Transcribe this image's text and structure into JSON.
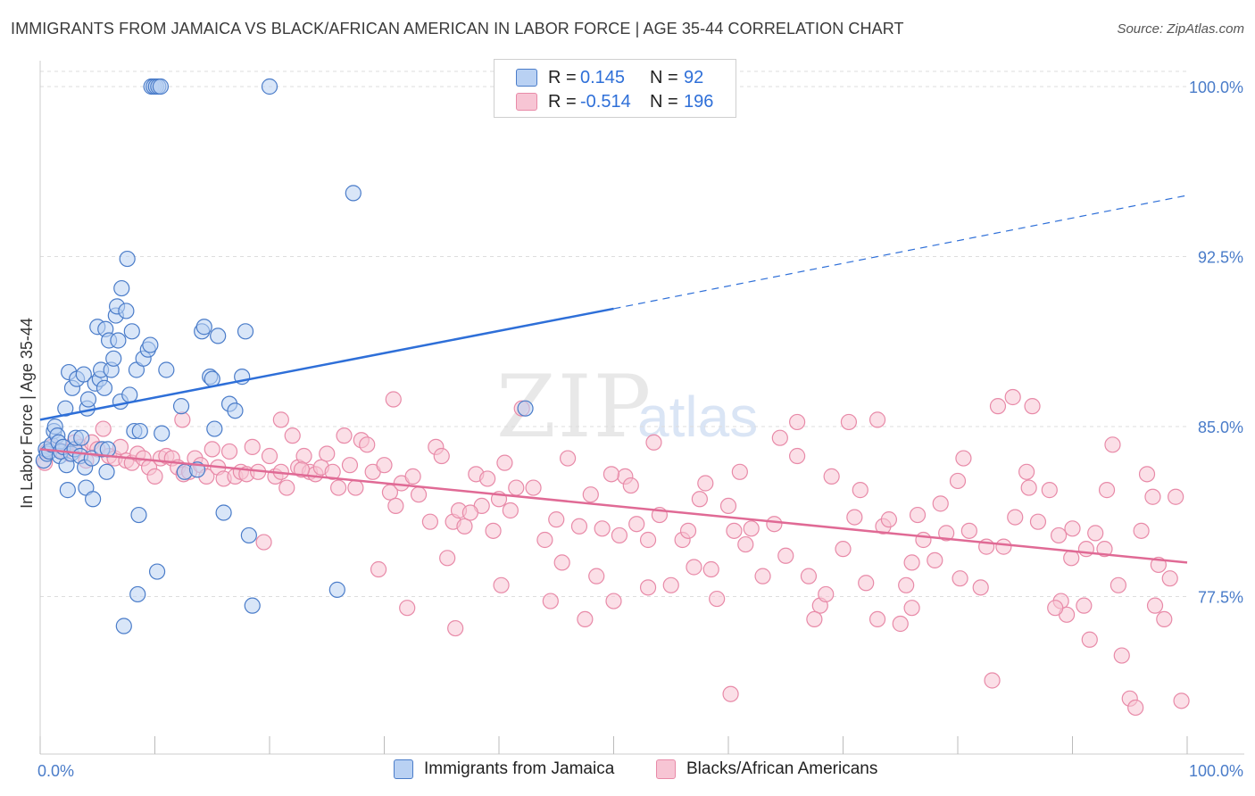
{
  "header": {
    "title": "IMMIGRANTS FROM JAMAICA VS BLACK/AFRICAN AMERICAN IN LABOR FORCE | AGE 35-44 CORRELATION CHART",
    "source": "Source: ZipAtlas.com"
  },
  "watermark": {
    "zip": "ZIP",
    "atlas": "atlas"
  },
  "legend": {
    "r_label": "R =",
    "n_label": "N =",
    "rows": [
      {
        "r": "0.145",
        "n": "92"
      },
      {
        "r": "-0.514",
        "n": "196"
      }
    ]
  },
  "colors": {
    "blue_fill": "#b9d1f3",
    "blue_stroke": "#4a7cc9",
    "blue_line": "#2e6fd8",
    "pink_fill": "#f7c5d4",
    "pink_stroke": "#e88aa8",
    "pink_line": "#e06a95",
    "tick_color": "#4a7cc9",
    "grid": "#dddddd"
  },
  "chart_data": {
    "type": "scatter",
    "title": "IMMIGRANTS FROM JAMAICA VS BLACK/AFRICAN AMERICAN IN LABOR FORCE | AGE 35-44 CORRELATION CHART",
    "ylabel": "In Labor Force | Age 35-44",
    "xlabel": "",
    "x_tick_labels": [
      "0.0%",
      "100.0%"
    ],
    "y_tick_labels": [
      "100.0%",
      "92.5%",
      "85.0%",
      "77.5%"
    ],
    "y_ticks": [
      100.0,
      92.5,
      85.0,
      77.5
    ],
    "xlim": [
      0,
      100
    ],
    "ylim": [
      70.5,
      100.5
    ],
    "grid": true,
    "legend_position": "top-center",
    "series": [
      {
        "name": "Immigrants from Jamaica",
        "r": 0.145,
        "n": 92,
        "trend": {
          "x0": 0,
          "y0": 85.3,
          "x1": 50,
          "y1": 90.2,
          "dash_to_x": 100,
          "dash_to_y": 95.2
        },
        "points": [
          [
            0.3,
            83.5
          ],
          [
            0.5,
            84.0
          ],
          [
            0.6,
            83.8
          ],
          [
            0.8,
            83.9
          ],
          [
            1.0,
            84.2
          ],
          [
            1.2,
            84.8
          ],
          [
            1.3,
            85.0
          ],
          [
            1.5,
            84.6
          ],
          [
            1.6,
            84.3
          ],
          [
            1.7,
            83.7
          ],
          [
            1.8,
            83.9
          ],
          [
            2.0,
            84.1
          ],
          [
            2.2,
            85.8
          ],
          [
            2.3,
            83.3
          ],
          [
            2.4,
            82.2
          ],
          [
            2.5,
            87.4
          ],
          [
            2.7,
            83.8
          ],
          [
            2.8,
            86.7
          ],
          [
            3.0,
            84.0
          ],
          [
            3.1,
            84.5
          ],
          [
            3.2,
            87.1
          ],
          [
            3.5,
            83.7
          ],
          [
            3.6,
            84.5
          ],
          [
            3.8,
            87.3
          ],
          [
            3.9,
            83.2
          ],
          [
            4.0,
            82.3
          ],
          [
            4.1,
            85.8
          ],
          [
            4.2,
            86.2
          ],
          [
            4.5,
            83.6
          ],
          [
            4.6,
            81.8
          ],
          [
            4.8,
            86.9
          ],
          [
            5.0,
            89.4
          ],
          [
            5.2,
            87.1
          ],
          [
            5.3,
            87.5
          ],
          [
            5.4,
            84.0
          ],
          [
            5.6,
            86.7
          ],
          [
            5.7,
            89.3
          ],
          [
            5.8,
            83.0
          ],
          [
            5.9,
            84.0
          ],
          [
            6.0,
            88.8
          ],
          [
            6.2,
            87.5
          ],
          [
            6.4,
            88.0
          ],
          [
            6.6,
            89.9
          ],
          [
            6.7,
            90.3
          ],
          [
            6.8,
            88.8
          ],
          [
            7.0,
            86.1
          ],
          [
            7.1,
            91.1
          ],
          [
            7.3,
            76.2
          ],
          [
            7.5,
            90.1
          ],
          [
            7.6,
            92.4
          ],
          [
            7.8,
            86.4
          ],
          [
            8.0,
            89.2
          ],
          [
            8.2,
            84.8
          ],
          [
            8.4,
            87.5
          ],
          [
            8.5,
            77.6
          ],
          [
            8.6,
            81.1
          ],
          [
            8.7,
            84.8
          ],
          [
            9.0,
            88.0
          ],
          [
            9.4,
            88.4
          ],
          [
            9.6,
            88.6
          ],
          [
            9.7,
            100.0
          ],
          [
            9.9,
            100.0
          ],
          [
            10.1,
            100.0
          ],
          [
            10.2,
            78.6
          ],
          [
            10.3,
            100.0
          ],
          [
            10.5,
            100.0
          ],
          [
            10.6,
            84.7
          ],
          [
            11.0,
            87.5
          ],
          [
            12.3,
            85.9
          ],
          [
            12.6,
            83.0
          ],
          [
            13.7,
            83.1
          ],
          [
            14.1,
            89.2
          ],
          [
            14.3,
            89.4
          ],
          [
            14.8,
            87.2
          ],
          [
            15.0,
            87.1
          ],
          [
            15.2,
            84.9
          ],
          [
            15.5,
            89.0
          ],
          [
            16.0,
            81.2
          ],
          [
            16.5,
            86.0
          ],
          [
            17.0,
            85.7
          ],
          [
            17.6,
            87.2
          ],
          [
            17.9,
            89.2
          ],
          [
            18.2,
            80.2
          ],
          [
            18.5,
            77.1
          ],
          [
            20.0,
            100.0
          ],
          [
            25.9,
            77.8
          ],
          [
            27.3,
            95.3
          ],
          [
            42.3,
            85.8
          ]
        ]
      },
      {
        "name": "Blacks/African Americans",
        "r": -0.514,
        "n": 196,
        "trend": {
          "x0": 0,
          "y0": 84.0,
          "x1": 100,
          "y1": 79.0
        },
        "points": [
          [
            0.4,
            83.4
          ],
          [
            0.6,
            83.9
          ],
          [
            1.0,
            84.1
          ],
          [
            1.5,
            84.0
          ],
          [
            2.0,
            83.9
          ],
          [
            2.5,
            83.8
          ],
          [
            3.0,
            84.3
          ],
          [
            3.5,
            84.1
          ],
          [
            4.0,
            83.5
          ],
          [
            4.5,
            84.3
          ],
          [
            5.0,
            84.0
          ],
          [
            5.5,
            84.9
          ],
          [
            6.0,
            83.7
          ],
          [
            6.5,
            83.6
          ],
          [
            7.0,
            84.1
          ],
          [
            7.5,
            83.5
          ],
          [
            8.0,
            83.4
          ],
          [
            8.5,
            83.8
          ],
          [
            9.0,
            83.6
          ],
          [
            9.5,
            83.2
          ],
          [
            10.0,
            82.8
          ],
          [
            10.5,
            83.6
          ],
          [
            11.0,
            83.7
          ],
          [
            11.5,
            83.6
          ],
          [
            12.0,
            83.2
          ],
          [
            12.5,
            82.9
          ],
          [
            13.0,
            83.0
          ],
          [
            13.5,
            83.6
          ],
          [
            14.0,
            83.3
          ],
          [
            14.5,
            82.8
          ],
          [
            15.0,
            84.0
          ],
          [
            15.5,
            83.2
          ],
          [
            16.0,
            82.7
          ],
          [
            16.5,
            83.9
          ],
          [
            17.0,
            82.8
          ],
          [
            17.5,
            83.0
          ],
          [
            18.0,
            82.9
          ],
          [
            18.5,
            84.1
          ],
          [
            19.0,
            83.0
          ],
          [
            19.5,
            79.9
          ],
          [
            20.0,
            83.7
          ],
          [
            20.5,
            82.8
          ],
          [
            21.0,
            83.0
          ],
          [
            21.5,
            82.3
          ],
          [
            22.0,
            84.6
          ],
          [
            22.5,
            83.2
          ],
          [
            23.0,
            83.7
          ],
          [
            23.5,
            83.0
          ],
          [
            24.0,
            82.9
          ],
          [
            24.5,
            83.2
          ],
          [
            25.0,
            83.8
          ],
          [
            25.5,
            83.0
          ],
          [
            26.0,
            82.3
          ],
          [
            26.5,
            84.6
          ],
          [
            27.0,
            83.3
          ],
          [
            27.5,
            82.3
          ],
          [
            28.0,
            84.4
          ],
          [
            28.5,
            84.2
          ],
          [
            29.0,
            83.0
          ],
          [
            29.5,
            78.7
          ],
          [
            30.0,
            83.3
          ],
          [
            30.5,
            82.1
          ],
          [
            31.0,
            81.5
          ],
          [
            31.5,
            82.5
          ],
          [
            32.0,
            77.0
          ],
          [
            32.5,
            82.8
          ],
          [
            33.0,
            82.0
          ],
          [
            34.0,
            80.8
          ],
          [
            34.5,
            84.1
          ],
          [
            35.0,
            83.7
          ],
          [
            35.5,
            79.2
          ],
          [
            36.0,
            80.8
          ],
          [
            36.5,
            81.3
          ],
          [
            37.0,
            80.6
          ],
          [
            38.0,
            82.9
          ],
          [
            38.5,
            81.5
          ],
          [
            39.0,
            82.7
          ],
          [
            39.5,
            80.4
          ],
          [
            40.0,
            81.8
          ],
          [
            40.5,
            83.4
          ],
          [
            41.0,
            81.3
          ],
          [
            41.5,
            82.3
          ],
          [
            42.0,
            85.8
          ],
          [
            43.0,
            82.3
          ],
          [
            44.0,
            80.0
          ],
          [
            45.0,
            80.9
          ],
          [
            46.0,
            83.6
          ],
          [
            47.0,
            80.6
          ],
          [
            48.0,
            82.0
          ],
          [
            48.5,
            78.4
          ],
          [
            49.0,
            80.5
          ],
          [
            50.0,
            77.3
          ],
          [
            50.5,
            80.2
          ],
          [
            51.0,
            82.8
          ],
          [
            51.5,
            82.4
          ],
          [
            52.0,
            80.7
          ],
          [
            53.0,
            77.9
          ],
          [
            53.5,
            84.3
          ],
          [
            54.0,
            81.1
          ],
          [
            55.0,
            78.0
          ],
          [
            56.0,
            80.0
          ],
          [
            56.5,
            80.4
          ],
          [
            57.0,
            78.8
          ],
          [
            58.0,
            82.5
          ],
          [
            58.5,
            78.7
          ],
          [
            59.0,
            77.4
          ],
          [
            60.0,
            81.5
          ],
          [
            60.5,
            80.4
          ],
          [
            61.0,
            83.0
          ],
          [
            61.5,
            79.8
          ],
          [
            62.0,
            80.5
          ],
          [
            63.0,
            78.4
          ],
          [
            64.0,
            80.7
          ],
          [
            65.0,
            79.3
          ],
          [
            66.0,
            83.7
          ],
          [
            67.0,
            78.4
          ],
          [
            68.0,
            77.1
          ],
          [
            68.5,
            77.6
          ],
          [
            69.0,
            82.8
          ],
          [
            70.0,
            79.6
          ],
          [
            71.0,
            81.0
          ],
          [
            72.0,
            78.1
          ],
          [
            73.0,
            76.5
          ],
          [
            73.5,
            80.6
          ],
          [
            74.0,
            80.9
          ],
          [
            75.0,
            76.3
          ],
          [
            76.0,
            79.0
          ],
          [
            76.5,
            81.1
          ],
          [
            77.0,
            80.0
          ],
          [
            78.0,
            79.1
          ],
          [
            78.5,
            81.6
          ],
          [
            79.0,
            80.3
          ],
          [
            80.0,
            82.6
          ],
          [
            80.5,
            83.6
          ],
          [
            81.0,
            80.4
          ],
          [
            82.0,
            77.9
          ],
          [
            83.0,
            73.8
          ],
          [
            83.5,
            85.9
          ],
          [
            84.0,
            79.7
          ],
          [
            85.0,
            81.0
          ],
          [
            86.0,
            83.0
          ],
          [
            87.0,
            80.8
          ],
          [
            88.0,
            82.2
          ],
          [
            89.0,
            77.3
          ],
          [
            89.5,
            76.7
          ],
          [
            90.0,
            80.5
          ],
          [
            91.0,
            77.1
          ],
          [
            91.5,
            75.6
          ],
          [
            92.0,
            80.3
          ],
          [
            93.0,
            82.2
          ],
          [
            93.5,
            84.2
          ],
          [
            94.0,
            78.0
          ],
          [
            95.0,
            73.0
          ],
          [
            95.5,
            72.6
          ],
          [
            96.0,
            80.4
          ],
          [
            96.5,
            82.9
          ],
          [
            97.0,
            81.9
          ],
          [
            97.5,
            78.9
          ],
          [
            98.0,
            76.5
          ],
          [
            98.5,
            78.3
          ],
          [
            99.0,
            81.9
          ],
          [
            99.5,
            72.9
          ],
          [
            86.5,
            85.9
          ],
          [
            84.8,
            86.3
          ],
          [
            88.5,
            77.0
          ],
          [
            91.2,
            79.6
          ],
          [
            75.5,
            78.0
          ],
          [
            57.5,
            81.8
          ],
          [
            49.8,
            82.9
          ],
          [
            45.5,
            79.0
          ],
          [
            40.2,
            78.0
          ],
          [
            37.5,
            81.2
          ],
          [
            36.2,
            76.1
          ],
          [
            30.8,
            86.2
          ],
          [
            22.8,
            83.1
          ],
          [
            12.4,
            85.3
          ],
          [
            21.0,
            85.3
          ],
          [
            94.3,
            74.9
          ],
          [
            60.2,
            73.2
          ],
          [
            64.5,
            84.5
          ],
          [
            70.5,
            85.2
          ],
          [
            47.5,
            76.5
          ],
          [
            53.0,
            80.0
          ],
          [
            76.0,
            77.0
          ],
          [
            67.5,
            76.5
          ],
          [
            44.5,
            77.3
          ],
          [
            80.2,
            78.3
          ],
          [
            86.2,
            82.3
          ],
          [
            88.8,
            80.2
          ],
          [
            66.0,
            85.2
          ],
          [
            71.5,
            82.2
          ],
          [
            73.0,
            85.3
          ],
          [
            82.5,
            79.7
          ],
          [
            89.9,
            79.2
          ],
          [
            97.2,
            77.1
          ],
          [
            92.8,
            79.6
          ]
        ]
      }
    ]
  }
}
